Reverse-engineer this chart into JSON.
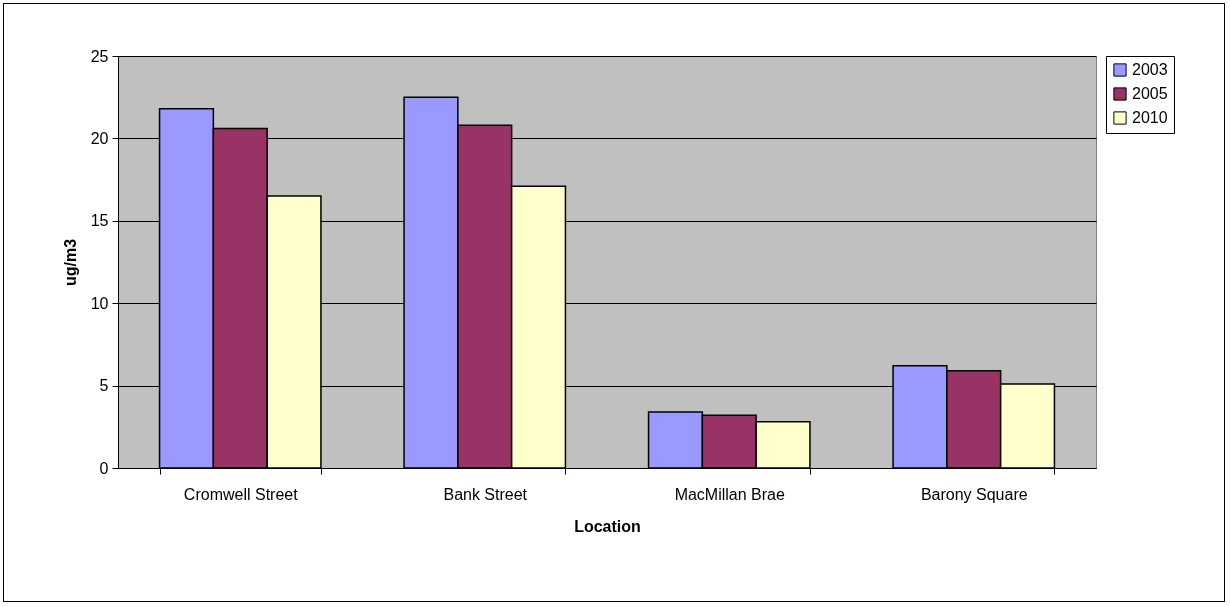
{
  "chart_data": {
    "type": "bar",
    "xlabel": "Location",
    "ylabel": "ug/m3",
    "categories": [
      "Cromwell Street",
      "Bank Street",
      "MacMillan Brae",
      "Barony Square"
    ],
    "series": [
      {
        "name": "2003",
        "color": "#9999ff",
        "values": [
          21.8,
          22.5,
          3.4,
          6.2
        ]
      },
      {
        "name": "2005",
        "color": "#993366",
        "values": [
          20.6,
          20.8,
          3.2,
          5.9
        ]
      },
      {
        "name": "2010",
        "color": "#ffffcc",
        "values": [
          16.5,
          17.1,
          2.8,
          5.1
        ]
      }
    ],
    "ylim": [
      0,
      25
    ],
    "yticks": [
      0,
      5,
      10,
      15,
      20,
      25
    ],
    "grid": "y",
    "legend": "right"
  }
}
